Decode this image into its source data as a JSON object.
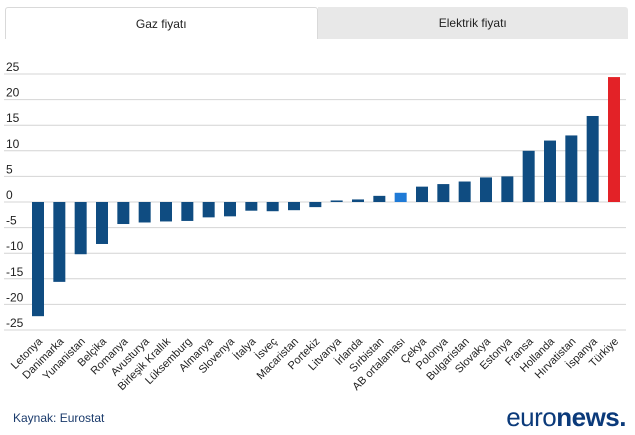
{
  "tabs": [
    {
      "label": "Gaz fiyatı",
      "active": true
    },
    {
      "label": "Elektrik fiyatı",
      "active": false
    }
  ],
  "source": "Kaynak: Eurostat",
  "logo": {
    "part1": "euro",
    "part2": "news",
    "dot": "."
  },
  "colors": {
    "default": "#0f4c81",
    "average": "#1f7ad6",
    "highlight": "#e32227",
    "grid": "#d4d4d4"
  },
  "chart_data": {
    "type": "bar",
    "title": "Gaz fiyatı",
    "xlabel": "",
    "ylabel": "",
    "ylim": [
      -27,
      27
    ],
    "yticks": [
      25,
      20,
      15,
      10,
      5,
      0,
      -5,
      -10,
      -15,
      -20,
      -25
    ],
    "grid": true,
    "categories": [
      "Letonya",
      "Danimarka",
      "Yunanistan",
      "Belçika",
      "Romanya",
      "Avusturya",
      "Birleşik Krallık",
      "Lüksemburg",
      "Almanya",
      "Slovenya",
      "İtalya",
      "İsveç",
      "Macaristan",
      "Portekiz",
      "Litvanya",
      "İrlanda",
      "Sırbistan",
      "AB ortalaması",
      "Çekya",
      "Polonya",
      "Bulgaristan",
      "Slovakya",
      "Estonya",
      "Fransa",
      "Hollanda",
      "Hırvatistan",
      "İspanya",
      "Türkiye"
    ],
    "values": [
      -22.3,
      -15.6,
      -10.2,
      -8.2,
      -4.3,
      -4.0,
      -3.8,
      -3.7,
      -3.0,
      -2.8,
      -1.7,
      -1.8,
      -1.6,
      -1.0,
      0.3,
      0.5,
      1.2,
      1.8,
      3.0,
      3.5,
      4.0,
      4.8,
      5.0,
      10.0,
      12.0,
      13.0,
      16.8,
      24.4
    ],
    "highlight": {
      "AB ortalaması": "average",
      "Türkiye": "highlight"
    }
  }
}
